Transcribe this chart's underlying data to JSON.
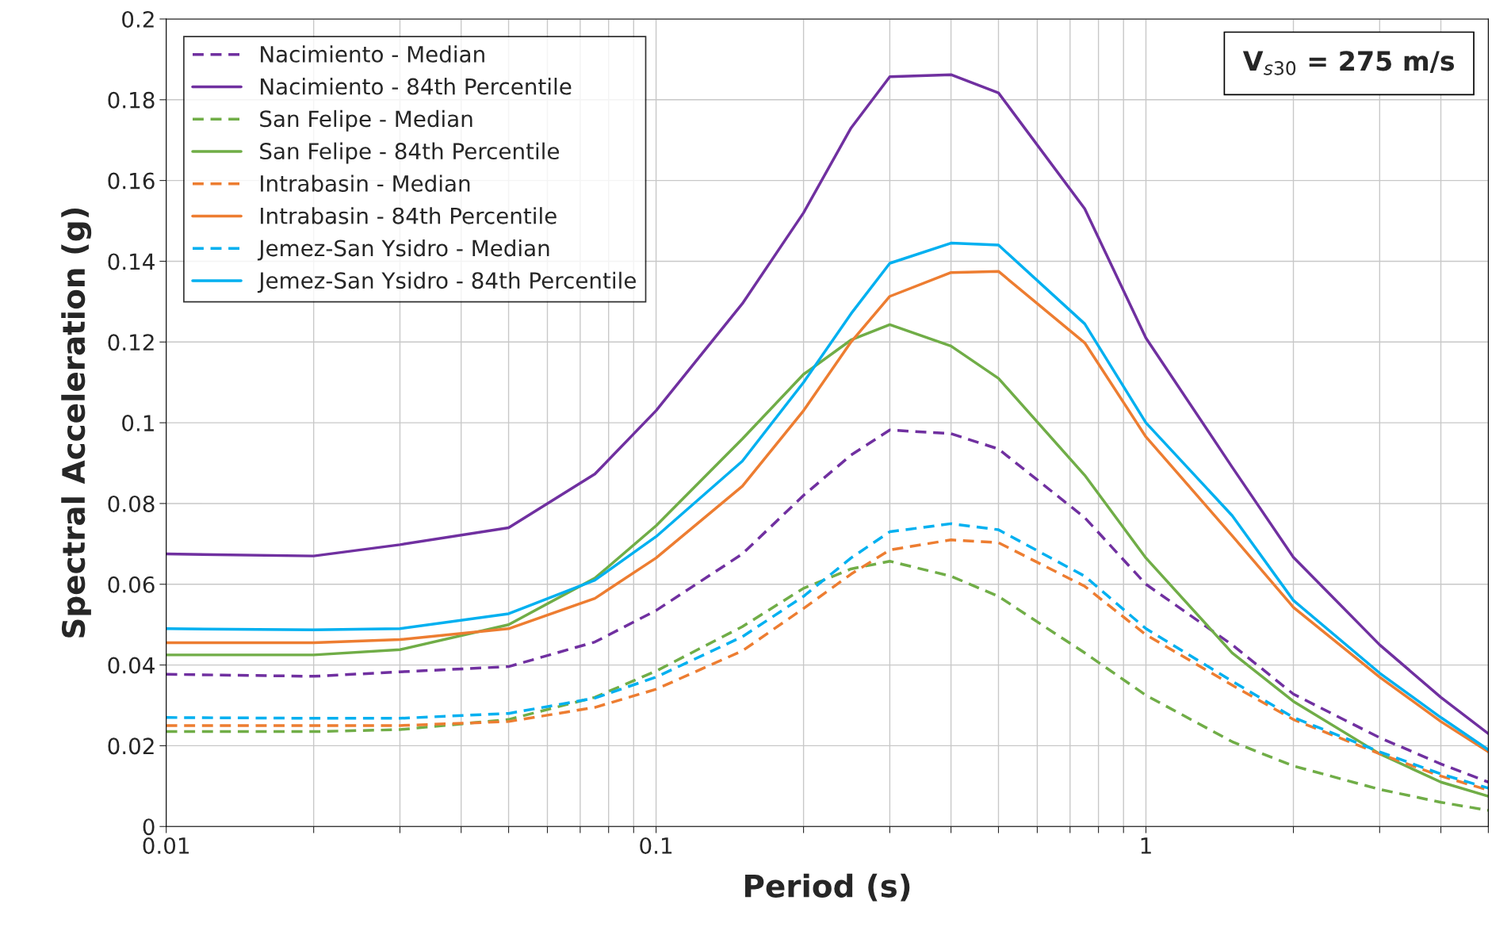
{
  "chart_data": {
    "type": "line",
    "xlabel": "Period (s)",
    "ylabel": "Spectral Acceleration (g)",
    "x": [
      0.01,
      0.02,
      0.03,
      0.05,
      0.075,
      0.1,
      0.15,
      0.2,
      0.25,
      0.3,
      0.4,
      0.5,
      0.75,
      1,
      1.5,
      2,
      3,
      4,
      5
    ],
    "series": [
      {
        "name": "Nacimiento - Median",
        "color": "#7030a0",
        "line_style": "dashed",
        "values": [
          0.0377,
          0.0372,
          0.0383,
          0.0396,
          0.0457,
          0.0535,
          0.0675,
          0.082,
          0.092,
          0.0982,
          0.0973,
          0.0935,
          0.0765,
          0.06,
          0.045,
          0.0328,
          0.022,
          0.0155,
          0.011
        ]
      },
      {
        "name": "Nacimiento - 84th Percentile",
        "color": "#7030a0",
        "line_style": "solid",
        "values": [
          0.0675,
          0.067,
          0.0698,
          0.074,
          0.0873,
          0.103,
          0.1295,
          0.152,
          0.173,
          0.1857,
          0.1862,
          0.1817,
          0.153,
          0.121,
          0.089,
          0.0667,
          0.045,
          0.032,
          0.023
        ]
      },
      {
        "name": "San Felipe - Median",
        "color": "#70ad47",
        "line_style": "dashed",
        "values": [
          0.0235,
          0.0235,
          0.024,
          0.0265,
          0.032,
          0.0385,
          0.0495,
          0.059,
          0.0638,
          0.0657,
          0.062,
          0.057,
          0.043,
          0.0325,
          0.021,
          0.015,
          0.0092,
          0.006,
          0.004
        ]
      },
      {
        "name": "San Felipe - 84th Percentile",
        "color": "#70ad47",
        "line_style": "solid",
        "values": [
          0.0425,
          0.0425,
          0.0438,
          0.05,
          0.0615,
          0.0745,
          0.096,
          0.112,
          0.1205,
          0.1243,
          0.119,
          0.111,
          0.087,
          0.0665,
          0.043,
          0.031,
          0.018,
          0.011,
          0.0075
        ]
      },
      {
        "name": "Intrabasin - Median",
        "color": "#ed7d31",
        "line_style": "dashed",
        "values": [
          0.025,
          0.025,
          0.025,
          0.026,
          0.0295,
          0.034,
          0.0435,
          0.054,
          0.0625,
          0.0685,
          0.071,
          0.0703,
          0.0595,
          0.0475,
          0.035,
          0.0265,
          0.018,
          0.0125,
          0.009
        ]
      },
      {
        "name": "Intrabasin - 84th Percentile",
        "color": "#ed7d31",
        "line_style": "solid",
        "values": [
          0.0455,
          0.0455,
          0.0463,
          0.049,
          0.0565,
          0.0665,
          0.0843,
          0.103,
          0.12,
          0.1313,
          0.1372,
          0.1375,
          0.1198,
          0.0965,
          0.072,
          0.0543,
          0.037,
          0.026,
          0.0185
        ]
      },
      {
        "name": "Jemez-San Ysidro - Median",
        "color": "#00b0f0",
        "line_style": "dashed",
        "values": [
          0.027,
          0.0268,
          0.0268,
          0.028,
          0.0318,
          0.037,
          0.047,
          0.057,
          0.0665,
          0.073,
          0.075,
          0.0735,
          0.062,
          0.049,
          0.036,
          0.027,
          0.0185,
          0.013,
          0.0095
        ]
      },
      {
        "name": "Jemez-San Ysidro - 84th Percentile",
        "color": "#00b0f0",
        "line_style": "solid",
        "values": [
          0.049,
          0.0487,
          0.049,
          0.0527,
          0.061,
          0.0718,
          0.0905,
          0.11,
          0.127,
          0.1395,
          0.1445,
          0.144,
          0.1245,
          0.1,
          0.077,
          0.056,
          0.038,
          0.027,
          0.019
        ]
      }
    ],
    "log": "x",
    "xlim": [
      0.01,
      5
    ],
    "ylim": [
      0,
      0.2
    ],
    "xticks": [
      0.01,
      {
        "value": 0.02,
        "label": null
      },
      {
        "value": 0.03,
        "label": null
      },
      {
        "value": 0.04,
        "label": null
      },
      {
        "value": 0.05,
        "label": null
      },
      {
        "value": 0.06,
        "label": null
      },
      {
        "value": 0.07,
        "label": null
      },
      {
        "value": 0.08,
        "label": null
      },
      {
        "value": 0.09,
        "label": null
      },
      0.1,
      {
        "value": 0.2,
        "label": null
      },
      {
        "value": 0.3,
        "label": null
      },
      {
        "value": 0.4,
        "label": null
      },
      {
        "value": 0.5,
        "label": null
      },
      {
        "value": 0.6,
        "label": null
      },
      {
        "value": 0.7,
        "label": null
      },
      {
        "value": 0.8,
        "label": null
      },
      {
        "value": 0.9,
        "label": null
      },
      1,
      {
        "value": 2,
        "label": null
      },
      {
        "value": 3,
        "label": null
      },
      {
        "value": 4,
        "label": null
      },
      {
        "value": 5,
        "label": null
      }
    ],
    "yticks": [
      0,
      0.02,
      0.04,
      0.06,
      0.08,
      0.1,
      0.12,
      0.14,
      0.16,
      0.18,
      0.2
    ],
    "grid": true,
    "legend": "top left",
    "marker": "none",
    "annotations": [
      "V$_{s30}$ = 275 m/s"
    ]
  }
}
